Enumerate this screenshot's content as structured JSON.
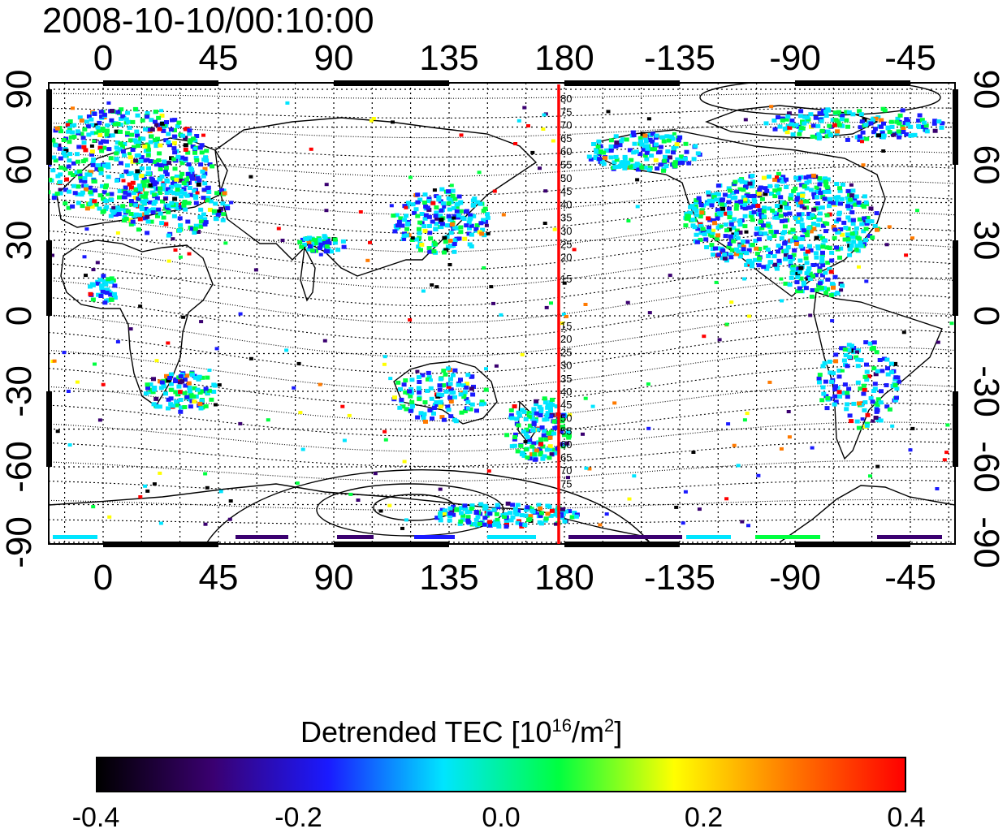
{
  "timestamp": "2008-10-10/00:10:00",
  "map": {
    "lon_ticks": [
      "0",
      "45",
      "90",
      "135",
      "180",
      "-135",
      "-90",
      "-45"
    ],
    "lat_ticks": [
      "90",
      "60",
      "30",
      "0",
      "-30",
      "-60",
      "-90"
    ],
    "geomagnetic_contour_labels_north": [
      "80",
      "75",
      "70",
      "65",
      "60",
      "55",
      "50",
      "45",
      "40",
      "35",
      "30",
      "25",
      "20",
      "15"
    ],
    "geomagnetic_contour_labels_south": [
      "15",
      "20",
      "25",
      "30",
      "35",
      "40",
      "45",
      "50",
      "55",
      "60",
      "65",
      "70",
      "75"
    ],
    "terminator_color": "#ff0000",
    "terminator_lon": 180
  },
  "colorbar": {
    "title_main": "Detrended TEC  [10",
    "title_exp": "16",
    "title_unit": "/m",
    "title_unit_exp": "2",
    "title_close": "]",
    "tick_labels": [
      "-0.4",
      "-0.2",
      "0.0",
      "0.2",
      "0.4"
    ],
    "min": -0.4,
    "max": 0.4,
    "stops": [
      "#000000",
      "#3a0070",
      "#1a1aff",
      "#00e5ff",
      "#00ff40",
      "#ffff00",
      "#ff7a00",
      "#ff0000"
    ]
  }
}
